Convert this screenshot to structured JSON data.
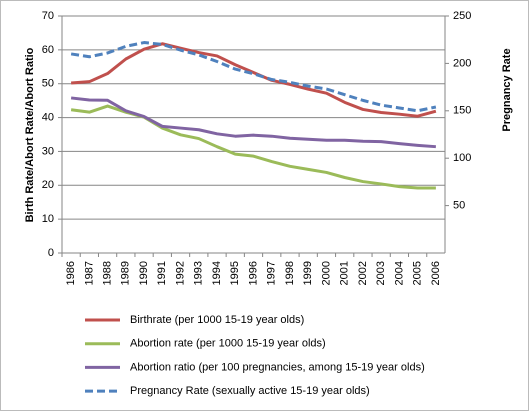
{
  "chart_data": {
    "type": "line",
    "y_label": "Birth Rate/Abort Rate/Abort Ratio",
    "y2_label": "Pregnancy Rate",
    "categories": [
      "1986",
      "1987",
      "1988",
      "1989",
      "1990",
      "1991",
      "1992",
      "1993",
      "1994",
      "1995",
      "1996",
      "1997",
      "1998",
      "1999",
      "2000",
      "2001",
      "2002",
      "2003",
      "2004",
      "2005",
      "2006"
    ],
    "ylim": [
      0,
      70
    ],
    "yticks": [
      0,
      10,
      20,
      30,
      40,
      50,
      60,
      70
    ],
    "y2lim": [
      0,
      250
    ],
    "y2ticks": [
      50,
      100,
      150,
      200,
      250
    ],
    "grid": true,
    "series": [
      {
        "name": "Birthrate (per 1000 15-19 year olds)",
        "color": "#c0504d",
        "style": "solid",
        "values": [
          50.2,
          50.6,
          53,
          57.3,
          60.2,
          61.8,
          60.5,
          59.2,
          58.2,
          55.6,
          53.3,
          51,
          49.8,
          48.4,
          47.2,
          44.5,
          42.4,
          41.5,
          41,
          40.4,
          41.9
        ]
      },
      {
        "name": "Abortion rate (per 1000 15-19 year olds)",
        "color": "#9bbb59",
        "style": "solid",
        "values": [
          42.3,
          41.6,
          43.4,
          41.6,
          40.1,
          36.9,
          34.9,
          33.8,
          31.4,
          29.2,
          28.6,
          27,
          25.6,
          24.7,
          23.8,
          22.3,
          21.1,
          20.4,
          19.6,
          19.2,
          19.2
        ]
      },
      {
        "name": "Abortion ratio (per 100 pregnancies, among 15-19 year olds)",
        "color": "#8064a2",
        "style": "solid",
        "values": [
          45.8,
          45.2,
          45.1,
          42,
          40.3,
          37.4,
          36.9,
          36.4,
          35.2,
          34.5,
          34.8,
          34.5,
          33.9,
          33.6,
          33.3,
          33.3,
          33,
          32.9,
          32.3,
          31.8,
          31.4
        ]
      },
      {
        "name": "Pregnancy Rate (sexually active 15-19 year olds)",
        "color": "#4f81bd",
        "style": "dashed",
        "axis": "y2",
        "values": [
          210,
          207,
          211,
          218,
          222,
          220,
          214,
          209,
          202,
          194,
          189,
          183,
          180,
          176,
          173,
          167,
          161,
          156,
          153,
          150,
          154
        ]
      }
    ]
  }
}
